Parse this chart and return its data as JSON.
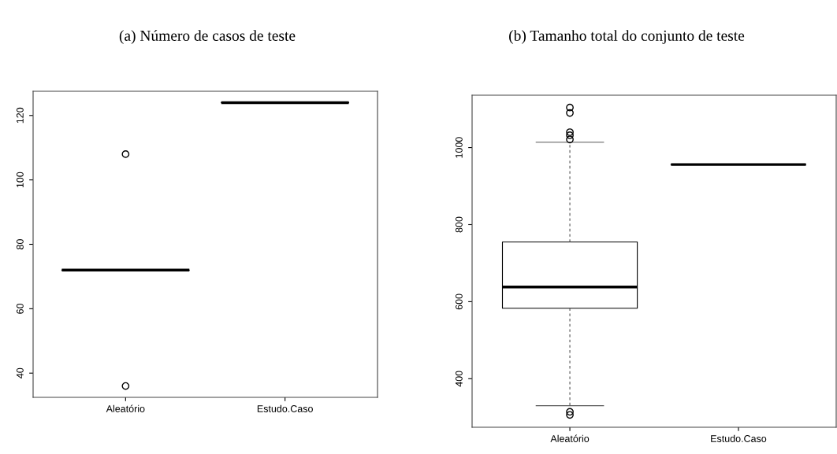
{
  "chart_data": [
    {
      "type": "box",
      "title": "(a) Número de casos de teste",
      "categories": [
        "Aleatório",
        "Estudo.Caso"
      ],
      "boxes": [
        {
          "low": 72,
          "q1": 72,
          "median": 72,
          "q3": 72,
          "high": 72,
          "outliers": [
            36,
            108
          ]
        },
        {
          "low": 124,
          "q1": 124,
          "median": 124,
          "q3": 124,
          "high": 124
        }
      ],
      "ylim": [
        32.48,
        127.52
      ],
      "yticks": [
        40,
        60,
        80,
        100,
        120
      ],
      "grid": false
    },
    {
      "type": "box",
      "title": "(b) Tamanho total do conjunto de teste",
      "categories": [
        "Aleatório",
        "Estudo.Caso"
      ],
      "boxes": [
        {
          "low": 330,
          "q1": 583,
          "median": 638,
          "q3": 755,
          "high": 1014,
          "outliers": [
            306,
            314,
            1021,
            1032,
            1040,
            1090,
            1104
          ]
        },
        {
          "low": 956,
          "q1": 956,
          "median": 956,
          "q3": 956,
          "high": 956
        }
      ],
      "ylim": [
        274,
        1136
      ],
      "yticks": [
        400,
        600,
        800,
        1000
      ],
      "grid": false
    }
  ]
}
